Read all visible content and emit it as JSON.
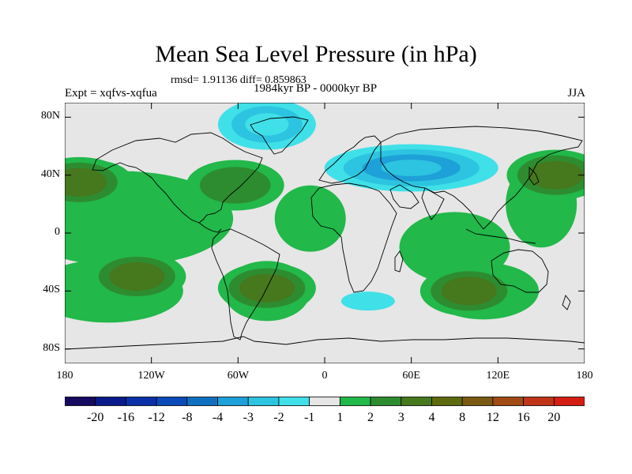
{
  "title": "Mean Sea Level Pressure (in hPa)",
  "stats": "rmsd= 1.91136 diff= 0.859863",
  "experiment": "Expt = xqfvs-xqfua",
  "period": "1984kyr BP - 0000kyr BP",
  "season": "JJA",
  "colors": {
    "land_neutral": "#e6e6e6",
    "coast": "#000000"
  },
  "chart_data": {
    "type": "heatmap",
    "title": "Mean Sea Level Pressure (in hPa)",
    "variable": "Mean sea level pressure difference",
    "units": "hPa",
    "x_range": [
      -180,
      180
    ],
    "y_range": [
      -90,
      90
    ],
    "x_ticks": [
      {
        "value": -180,
        "label": "180"
      },
      {
        "value": -120,
        "label": "120W"
      },
      {
        "value": -60,
        "label": "60W"
      },
      {
        "value": 0,
        "label": "0"
      },
      {
        "value": 60,
        "label": "60E"
      },
      {
        "value": 120,
        "label": "120E"
      },
      {
        "value": 180,
        "label": "180"
      }
    ],
    "y_ticks": [
      {
        "value": 80,
        "label": "80N"
      },
      {
        "value": 40,
        "label": "40N"
      },
      {
        "value": 0,
        "label": "0"
      },
      {
        "value": -40,
        "label": "40S"
      },
      {
        "value": -80,
        "label": "80S"
      }
    ],
    "levels": [
      -20,
      -16,
      -12,
      -8,
      -4,
      -3,
      -2,
      -1,
      1,
      2,
      3,
      4,
      8,
      12,
      16,
      20
    ],
    "level_labels": [
      "-20",
      "-16",
      "-12",
      "-8",
      "-4",
      "-3",
      "-2",
      "-1",
      "1",
      "2",
      "3",
      "4",
      "8",
      "12",
      "16",
      "20"
    ],
    "colors": [
      "#160a60",
      "#0a1a8a",
      "#0a30a8",
      "#0b4ab8",
      "#1070c0",
      "#1ea0d8",
      "#2cc4e0",
      "#40e0e8",
      "#e6e6e6",
      "#22b84a",
      "#2e8c30",
      "#46781e",
      "#5e6a10",
      "#7a5a12",
      "#a04a14",
      "#c03418",
      "#d41e14"
    ],
    "features": [
      {
        "name": "north-pacific-high",
        "lon": -170,
        "lat": 35,
        "value": 3.5
      },
      {
        "name": "northwest-pacific-high",
        "lon": 160,
        "lat": 40,
        "value": 3.5
      },
      {
        "name": "north-atlantic-high",
        "lon": -62,
        "lat": 33,
        "value": 2.5
      },
      {
        "name": "south-pacific-high",
        "lon": -130,
        "lat": -30,
        "value": 3.5
      },
      {
        "name": "south-atlantic-high",
        "lon": -40,
        "lat": -38,
        "value": 3.0
      },
      {
        "name": "south-indian-high",
        "lon": 100,
        "lat": -40,
        "value": 3.5
      },
      {
        "name": "eurasian-low",
        "lon": 60,
        "lat": 45,
        "value": -3.0
      },
      {
        "name": "arctic-greenland-low",
        "lon": -40,
        "lat": 75,
        "value": -2.0
      },
      {
        "name": "southern-ocean-low",
        "lon": 30,
        "lat": -47,
        "value": -1.5
      }
    ]
  }
}
